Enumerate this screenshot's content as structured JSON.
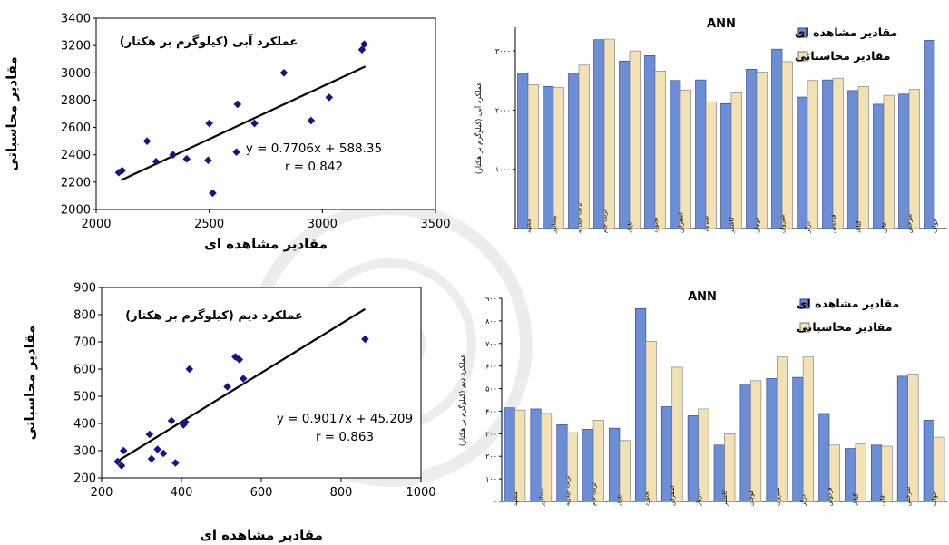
{
  "chart_data": [
    {
      "type": "scatter",
      "title": "عملکرد آبی (کیلوگرم بر هکتار)",
      "xlabel": "مقادیر مشاهده ای",
      "ylabel": "مقادیر محاسباتی",
      "xlim": [
        2000,
        3500
      ],
      "ylim": [
        2000,
        3400
      ],
      "xticks": [
        "2000",
        "2500",
        "3000",
        "3500"
      ],
      "yticks": [
        "2000",
        "2200",
        "2400",
        "2600",
        "2800",
        "3000",
        "3200",
        "3400"
      ],
      "points": [
        [
          2100,
          2270
        ],
        [
          2115,
          2285
        ],
        [
          2225,
          2500
        ],
        [
          2265,
          2350
        ],
        [
          2340,
          2400
        ],
        [
          2400,
          2370
        ],
        [
          2495,
          2360
        ],
        [
          2500,
          2630
        ],
        [
          2515,
          2120
        ],
        [
          2620,
          2420
        ],
        [
          2625,
          2770
        ],
        [
          2700,
          2630
        ],
        [
          2830,
          3000
        ],
        [
          2950,
          2650
        ],
        [
          3030,
          2820
        ],
        [
          3175,
          3170
        ],
        [
          3185,
          3210
        ]
      ],
      "trendline": {
        "slope": 0.7706,
        "intercept": 588.35,
        "x_range": [
          2110,
          3190
        ]
      },
      "equation": "y = 0.7706x + 588.35",
      "r_text": "r = 0.842",
      "grid": false
    },
    {
      "type": "bar",
      "title": "ANN",
      "ylabel": "عملکرد آبی (کیلوگرم بر هکتار)",
      "ylim": [
        0,
        3400
      ],
      "yticks": [
        "۰",
        "۱۰۰۰",
        "۲۰۰۰",
        "۳۰۰۰"
      ],
      "legend_position": "top-right",
      "categories": [
        "مشهد",
        "نیشابور",
        "تربت حیدریه",
        "تربت جام",
        "تایباد",
        "بجنورد",
        "اسفراین",
        "سبزوار",
        "کاشمر",
        "قوچان",
        "شیروان",
        "درگز",
        "فردوس",
        "گناباد",
        "قائن",
        "سرخس",
        "خواف"
      ],
      "series": [
        {
          "name": "مقادیر مشاهده ای",
          "values": [
            2620,
            2400,
            2620,
            3190,
            2830,
            2920,
            2500,
            2510,
            2110,
            2690,
            3030,
            2220,
            2510,
            2330,
            2100,
            2270,
            3180
          ]
        },
        {
          "name": "مقادیر محاسباتی",
          "values": [
            2430,
            2380,
            2760,
            3200,
            3000,
            2660,
            2340,
            2140,
            2290,
            2640,
            2820,
            2500,
            2540,
            2400,
            2250,
            2350,
            null
          ]
        }
      ]
    },
    {
      "type": "scatter",
      "title": "عملکرد دیم (کیلوگرم بر هکتار)",
      "xlabel": "مقادیر مشاهده ای",
      "ylabel": "مقادیر محاسباتی",
      "xlim": [
        200,
        1000
      ],
      "ylim": [
        200,
        900
      ],
      "xticks": [
        "200",
        "400",
        "600",
        "800",
        "1000"
      ],
      "yticks": [
        "200",
        "300",
        "400",
        "500",
        "600",
        "700",
        "800",
        "900"
      ],
      "points": [
        [
          240,
          260
        ],
        [
          250,
          245
        ],
        [
          255,
          300
        ],
        [
          320,
          360
        ],
        [
          325,
          270
        ],
        [
          340,
          305
        ],
        [
          355,
          290
        ],
        [
          375,
          410
        ],
        [
          385,
          255
        ],
        [
          405,
          395
        ],
        [
          410,
          405
        ],
        [
          420,
          600
        ],
        [
          515,
          535
        ],
        [
          535,
          645
        ],
        [
          545,
          635
        ],
        [
          555,
          565
        ],
        [
          860,
          710
        ]
      ],
      "trendline": {
        "slope": 0.9017,
        "intercept": 45.209,
        "x_range": [
          245,
          860
        ]
      },
      "equation": "y = 0.9017x + 45.209",
      "r_text": "r = 0.863",
      "grid": false
    },
    {
      "type": "bar",
      "title": "ANN",
      "ylabel": "عملکرد دیم (کیلوگرم بر هکتار)",
      "ylim": [
        0,
        900
      ],
      "yticks": [
        "۰",
        "۱۰۰",
        "۲۰۰",
        "۳۰۰",
        "۴۰۰",
        "۵۰۰",
        "۶۰۰",
        "۷۰۰",
        "۸۰۰",
        "۹۰۰"
      ],
      "legend_position": "top-right",
      "categories": [
        "مشهد",
        "نیشابور",
        "تربت حیدریه",
        "تربت جام",
        "تایباد",
        "بجنورد",
        "اسفراین",
        "سبزوار",
        "کاشمر",
        "قوچان",
        "شیروان",
        "درگز",
        "فردوس",
        "گناباد",
        "قائن",
        "سرخس",
        "خواف"
      ],
      "series": [
        {
          "name": "مقادیر مشاهده ای",
          "values": [
            415,
            410,
            340,
            320,
            325,
            855,
            420,
            380,
            250,
            520,
            545,
            550,
            390,
            235,
            250,
            555,
            360
          ]
        },
        {
          "name": "مقادیر محاسباتی",
          "values": [
            405,
            390,
            305,
            360,
            270,
            710,
            595,
            410,
            300,
            535,
            640,
            640,
            250,
            255,
            245,
            565,
            285
          ]
        }
      ]
    }
  ]
}
